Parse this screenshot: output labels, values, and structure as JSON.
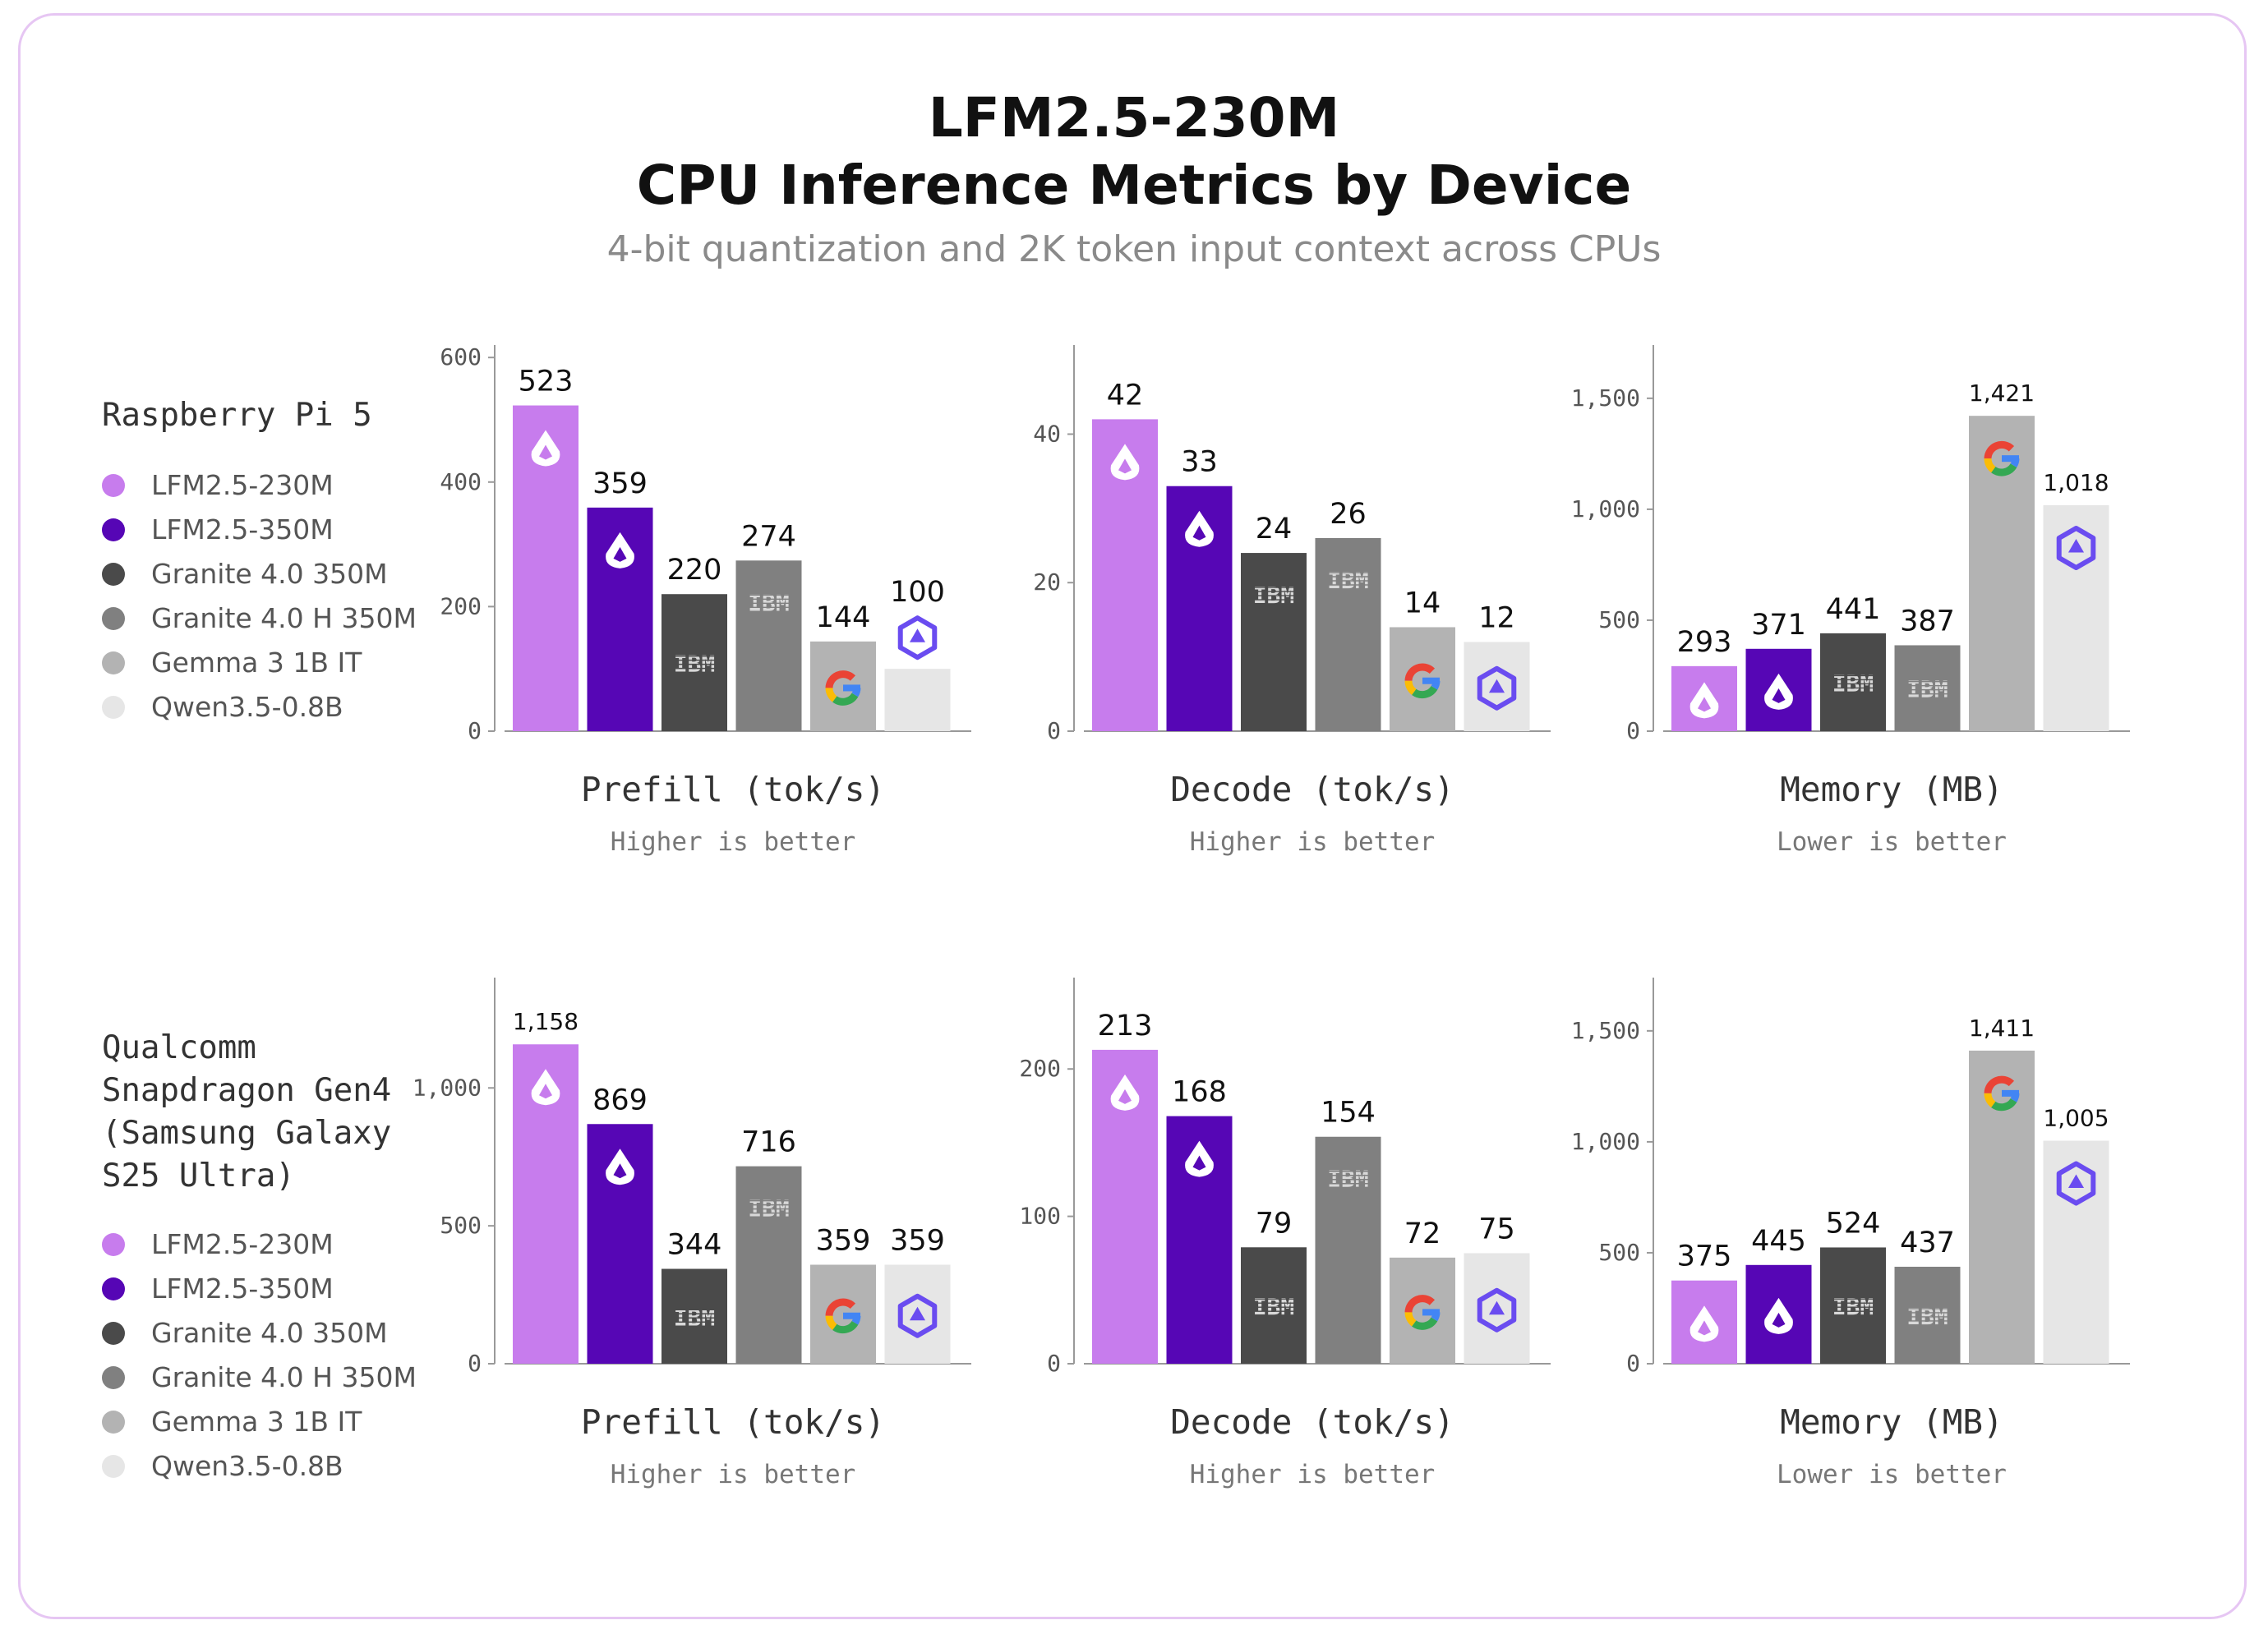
{
  "page": {
    "title_line1": "LFM2.5-230M",
    "title_line2": "CPU Inference Metrics by Device",
    "subtitle": "4-bit quantization and 2K token input context across CPUs"
  },
  "colors": {
    "LFM2.5-230M": "#c77ced",
    "LFM2.5-350M": "#5606b5",
    "Granite 4.0 350M": "#4a4a4a",
    "Granite 4.0 H 350M": "#808080",
    "Gemma 3 1B IT": "#b3b3b3",
    "Qwen3.5-0.8B": "#e6e6e6"
  },
  "sections": [
    {
      "device": "Raspberry Pi 5",
      "legend": [
        "LFM2.5-230M",
        "LFM2.5-350M",
        "Granite 4.0 350M",
        "Granite 4.0 H 350M",
        "Gemma 3 1B IT",
        "Qwen3.5-0.8B"
      ]
    },
    {
      "device": "Qualcomm\nSnapdragon Gen4\n(Samsung Galaxy\nS25 Ultra)",
      "legend": [
        "LFM2.5-230M",
        "LFM2.5-350M",
        "Granite 4.0 350M",
        "Granite 4.0 H 350M",
        "Gemma 3 1B IT",
        "Qwen3.5-0.8B"
      ]
    }
  ],
  "chart_data": [
    {
      "type": "bar",
      "device": "Raspberry Pi 5",
      "title": "Prefill (tok/s)",
      "subtitle": "Higher is better",
      "categories": [
        "LFM2.5-230M",
        "LFM2.5-350M",
        "Granite 4.0 350M",
        "Granite 4.0 H 350M",
        "Gemma 3 1B IT",
        "Qwen3.5-0.8B"
      ],
      "values": [
        523,
        359,
        220,
        274,
        144,
        100
      ],
      "labels": [
        "523",
        "359",
        "220",
        "274",
        "144",
        "100"
      ],
      "icons": [
        "liquid-icon",
        "liquid-icon",
        "ibm-icon",
        "ibm-icon",
        "google-icon",
        "qwen-icon"
      ],
      "ylim": [
        0,
        620
      ],
      "yticks": [
        0,
        200,
        400,
        600
      ],
      "ytick_labels": [
        "0",
        "200",
        "400",
        "600"
      ]
    },
    {
      "type": "bar",
      "device": "Raspberry Pi 5",
      "title": "Decode (tok/s)",
      "subtitle": "Higher is better",
      "categories": [
        "LFM2.5-230M",
        "LFM2.5-350M",
        "Granite 4.0 350M",
        "Granite 4.0 H 350M",
        "Gemma 3 1B IT",
        "Qwen3.5-0.8B"
      ],
      "values": [
        42,
        33,
        24,
        26,
        14,
        12
      ],
      "labels": [
        "42",
        "33",
        "24",
        "26",
        "14",
        "12"
      ],
      "icons": [
        "liquid-icon",
        "liquid-icon",
        "ibm-icon",
        "ibm-icon",
        "google-icon",
        "qwen-icon"
      ],
      "ylim": [
        0,
        52
      ],
      "yticks": [
        0,
        20,
        40
      ],
      "ytick_labels": [
        "0",
        "20",
        "40"
      ]
    },
    {
      "type": "bar",
      "device": "Raspberry Pi 5",
      "title": "Memory (MB)",
      "subtitle": "Lower is better",
      "categories": [
        "LFM2.5-230M",
        "LFM2.5-350M",
        "Granite 4.0 350M",
        "Granite 4.0 H 350M",
        "Gemma 3 1B IT",
        "Qwen3.5-0.8B"
      ],
      "values": [
        293,
        371,
        441,
        387,
        1421,
        1018
      ],
      "labels": [
        "293",
        "371",
        "441",
        "387",
        "1,421",
        "1,018"
      ],
      "icons": [
        "liquid-icon",
        "liquid-icon",
        "ibm-icon",
        "ibm-icon",
        "google-icon",
        "qwen-icon"
      ],
      "ylim": [
        0,
        1740
      ],
      "yticks": [
        0,
        500,
        1000,
        1500
      ],
      "ytick_labels": [
        "0",
        "500",
        "1,000",
        "1,500"
      ]
    },
    {
      "type": "bar",
      "device": "Qualcomm Snapdragon Gen4 (Samsung Galaxy S25 Ultra)",
      "title": "Prefill (tok/s)",
      "subtitle": "Higher is better",
      "categories": [
        "LFM2.5-230M",
        "LFM2.5-350M",
        "Granite 4.0 350M",
        "Granite 4.0 H 350M",
        "Gemma 3 1B IT",
        "Qwen3.5-0.8B"
      ],
      "values": [
        1158,
        869,
        344,
        716,
        359,
        359
      ],
      "labels": [
        "1,158",
        "869",
        "344",
        "716",
        "359",
        "359"
      ],
      "icons": [
        "liquid-icon",
        "liquid-icon",
        "ibm-icon",
        "ibm-icon",
        "google-icon",
        "qwen-icon"
      ],
      "ylim": [
        0,
        1400
      ],
      "yticks": [
        0,
        500,
        1000
      ],
      "ytick_labels": [
        "0",
        "500",
        "1,000"
      ]
    },
    {
      "type": "bar",
      "device": "Qualcomm Snapdragon Gen4 (Samsung Galaxy S25 Ultra)",
      "title": "Decode (tok/s)",
      "subtitle": "Higher is better",
      "categories": [
        "LFM2.5-230M",
        "LFM2.5-350M",
        "Granite 4.0 350M",
        "Granite 4.0 H 350M",
        "Gemma 3 1B IT",
        "Qwen3.5-0.8B"
      ],
      "values": [
        213,
        168,
        79,
        154,
        72,
        75
      ],
      "labels": [
        "213",
        "168",
        "79",
        "154",
        "72",
        "75"
      ],
      "icons": [
        "liquid-icon",
        "liquid-icon",
        "ibm-icon",
        "ibm-icon",
        "google-icon",
        "qwen-icon"
      ],
      "ylim": [
        0,
        262
      ],
      "yticks": [
        0,
        100,
        200
      ],
      "ytick_labels": [
        "0",
        "100",
        "200"
      ]
    },
    {
      "type": "bar",
      "device": "Qualcomm Snapdragon Gen4 (Samsung Galaxy S25 Ultra)",
      "title": "Memory (MB)",
      "subtitle": "Lower is better",
      "categories": [
        "LFM2.5-230M",
        "LFM2.5-350M",
        "Granite 4.0 350M",
        "Granite 4.0 H 350M",
        "Gemma 3 1B IT",
        "Qwen3.5-0.8B"
      ],
      "values": [
        375,
        445,
        524,
        437,
        1411,
        1005
      ],
      "labels": [
        "375",
        "445",
        "524",
        "437",
        "1,411",
        "1,005"
      ],
      "icons": [
        "liquid-icon",
        "liquid-icon",
        "ibm-icon",
        "ibm-icon",
        "google-icon",
        "qwen-icon"
      ],
      "ylim": [
        0,
        1740
      ],
      "yticks": [
        0,
        500,
        1000,
        1500
      ],
      "ytick_labels": [
        "0",
        "500",
        "1,000",
        "1,500"
      ]
    }
  ]
}
